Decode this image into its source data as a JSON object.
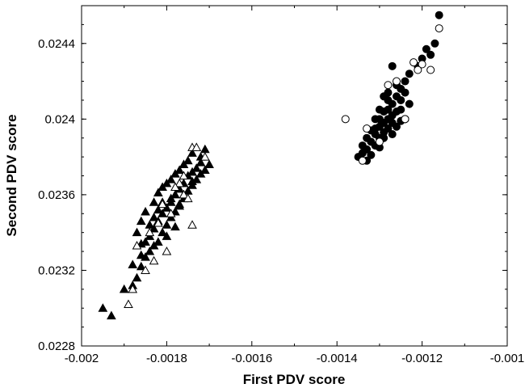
{
  "chart_data": {
    "type": "scatter",
    "xlabel": "First PDV score",
    "ylabel": "Second PDV score",
    "xlim": [
      -0.002,
      -0.001
    ],
    "ylim": [
      0.0228,
      0.0246
    ],
    "x_ticks": [
      -0.002,
      -0.0018,
      -0.0016,
      -0.0014,
      -0.0012,
      -0.001
    ],
    "x_tick_labels": [
      "-0.002",
      "-0.0018",
      "-0.0016",
      "-0.0014",
      "-0.0012",
      "-0.001"
    ],
    "y_ticks": [
      0.0228,
      0.0232,
      0.0236,
      0.024,
      0.0244
    ],
    "y_tick_labels": [
      "0.0228",
      "0.0232",
      "0.0236",
      "0.024",
      "0.0244"
    ],
    "grid": false,
    "legend": "none",
    "series": [
      {
        "marker": "filled-triangle",
        "color": "#000000",
        "points": [
          [
            -0.00195,
            0.023
          ],
          [
            -0.00193,
            0.02296
          ],
          [
            -0.0019,
            0.0231
          ],
          [
            -0.00188,
            0.02312
          ],
          [
            -0.00187,
            0.02316
          ],
          [
            -0.00186,
            0.02322
          ],
          [
            -0.00188,
            0.02323
          ],
          [
            -0.00185,
            0.02327
          ],
          [
            -0.00184,
            0.0233
          ],
          [
            -0.00186,
            0.02328
          ],
          [
            -0.00183,
            0.02333
          ],
          [
            -0.00182,
            0.02335
          ],
          [
            -0.00184,
            0.02338
          ],
          [
            -0.00181,
            0.0234
          ],
          [
            -0.00183,
            0.02342
          ],
          [
            -0.0018,
            0.02344
          ],
          [
            -0.00182,
            0.02346
          ],
          [
            -0.00179,
            0.02348
          ],
          [
            -0.00181,
            0.0235
          ],
          [
            -0.00178,
            0.02351
          ],
          [
            -0.0018,
            0.02353
          ],
          [
            -0.00177,
            0.02354
          ],
          [
            -0.00179,
            0.02356
          ],
          [
            -0.00176,
            0.02358
          ],
          [
            -0.00178,
            0.0236
          ],
          [
            -0.00175,
            0.02362
          ],
          [
            -0.00177,
            0.02363
          ],
          [
            -0.00174,
            0.02365
          ],
          [
            -0.00176,
            0.02366
          ],
          [
            -0.00173,
            0.02368
          ],
          [
            -0.00175,
            0.0237
          ],
          [
            -0.00172,
            0.02371
          ],
          [
            -0.00174,
            0.02372
          ],
          [
            -0.00171,
            0.02373
          ],
          [
            -0.00173,
            0.02374
          ],
          [
            -0.0017,
            0.02376
          ],
          [
            -0.00175,
            0.02378
          ],
          [
            -0.00172,
            0.0238
          ],
          [
            -0.00174,
            0.02382
          ],
          [
            -0.00171,
            0.02384
          ],
          [
            -0.00176,
            0.02376
          ],
          [
            -0.00178,
            0.02371
          ],
          [
            -0.0018,
            0.02366
          ],
          [
            -0.00182,
            0.02361
          ],
          [
            -0.00183,
            0.02356
          ],
          [
            -0.00185,
            0.02351
          ],
          [
            -0.00186,
            0.02346
          ],
          [
            -0.00187,
            0.0234
          ],
          [
            -0.00181,
            0.02364
          ],
          [
            -0.00179,
            0.02368
          ],
          [
            -0.00177,
            0.02373
          ],
          [
            -0.00184,
            0.02344
          ],
          [
            -0.00182,
            0.02352
          ],
          [
            -0.00179,
            0.02358
          ],
          [
            -0.00177,
            0.02355
          ],
          [
            -0.00176,
            0.0236
          ],
          [
            -0.0018,
            0.02338
          ],
          [
            -0.00178,
            0.02343
          ],
          [
            -0.00185,
            0.02335
          ],
          [
            -0.00181,
            0.02356
          ],
          [
            -0.00174,
            0.02367
          ],
          [
            -0.00172,
            0.02377
          ],
          [
            -0.00183,
            0.02348
          ],
          [
            -0.00186,
            0.02334
          ]
        ]
      },
      {
        "marker": "open-triangle",
        "color": "#000000",
        "points": [
          [
            -0.00189,
            0.02302
          ],
          [
            -0.00188,
            0.0231
          ],
          [
            -0.00187,
            0.02333
          ],
          [
            -0.00184,
            0.0234
          ],
          [
            -0.00182,
            0.02345
          ],
          [
            -0.00181,
            0.02355
          ],
          [
            -0.00179,
            0.0235
          ],
          [
            -0.00177,
            0.02366
          ],
          [
            -0.00176,
            0.0236
          ],
          [
            -0.00175,
            0.02358
          ],
          [
            -0.00174,
            0.02344
          ],
          [
            -0.00178,
            0.02364
          ],
          [
            -0.00174,
            0.02385
          ],
          [
            -0.00173,
            0.02385
          ],
          [
            -0.00171,
            0.0238
          ],
          [
            -0.00176,
            0.0237
          ],
          [
            -0.00183,
            0.02325
          ],
          [
            -0.0018,
            0.0233
          ],
          [
            -0.00185,
            0.0232
          ]
        ]
      },
      {
        "marker": "filled-circle",
        "color": "#000000",
        "points": [
          [
            -0.00116,
            0.02455
          ],
          [
            -0.00117,
            0.0244
          ],
          [
            -0.00119,
            0.02437
          ],
          [
            -0.00118,
            0.02434
          ],
          [
            -0.0012,
            0.02432
          ],
          [
            -0.00121,
            0.02428
          ],
          [
            -0.00123,
            0.02424
          ],
          [
            -0.00124,
            0.0242
          ],
          [
            -0.00125,
            0.02416
          ],
          [
            -0.00127,
            0.02428
          ],
          [
            -0.00126,
            0.02412
          ],
          [
            -0.00127,
            0.02408
          ],
          [
            -0.00128,
            0.02405
          ],
          [
            -0.00126,
            0.02404
          ],
          [
            -0.00127,
            0.02402
          ],
          [
            -0.00128,
            0.024
          ],
          [
            -0.00129,
            0.02398
          ],
          [
            -0.0013,
            0.02396
          ],
          [
            -0.00128,
            0.02395
          ],
          [
            -0.00129,
            0.02393
          ],
          [
            -0.00131,
            0.02392
          ],
          [
            -0.0013,
            0.0239
          ],
          [
            -0.00132,
            0.02388
          ],
          [
            -0.00131,
            0.02386
          ],
          [
            -0.00133,
            0.02384
          ],
          [
            -0.00134,
            0.02382
          ],
          [
            -0.00135,
            0.0238
          ],
          [
            -0.00134,
            0.02386
          ],
          [
            -0.00133,
            0.02378
          ],
          [
            -0.00132,
            0.02381
          ],
          [
            -0.00131,
            0.02395
          ],
          [
            -0.0013,
            0.024
          ],
          [
            -0.00129,
            0.02404
          ],
          [
            -0.00128,
            0.0241
          ],
          [
            -0.00127,
            0.02398
          ],
          [
            -0.00126,
            0.02396
          ],
          [
            -0.00125,
            0.02405
          ],
          [
            -0.00124,
            0.024
          ],
          [
            -0.00125,
            0.0241
          ],
          [
            -0.00126,
            0.02418
          ],
          [
            -0.00127,
            0.02392
          ],
          [
            -0.00129,
            0.0239
          ],
          [
            -0.0013,
            0.02385
          ],
          [
            -0.00132,
            0.02394
          ],
          [
            -0.00133,
            0.0239
          ],
          [
            -0.00131,
            0.024
          ],
          [
            -0.0013,
            0.02405
          ],
          [
            -0.00129,
            0.02412
          ],
          [
            -0.00128,
            0.02414
          ],
          [
            -0.00124,
            0.02414
          ],
          [
            -0.00123,
            0.02408
          ],
          [
            -0.00125,
            0.02399
          ]
        ]
      },
      {
        "marker": "open-circle",
        "color": "#000000",
        "points": [
          [
            -0.00138,
            0.024
          ],
          [
            -0.00116,
            0.02448
          ],
          [
            -0.00118,
            0.02426
          ],
          [
            -0.0012,
            0.02429
          ],
          [
            -0.00121,
            0.02426
          ],
          [
            -0.00122,
            0.0243
          ],
          [
            -0.00126,
            0.0242
          ],
          [
            -0.00128,
            0.02418
          ],
          [
            -0.00133,
            0.02395
          ],
          [
            -0.0013,
            0.02388
          ],
          [
            -0.00134,
            0.02378
          ],
          [
            -0.00124,
            0.024
          ]
        ]
      }
    ]
  }
}
